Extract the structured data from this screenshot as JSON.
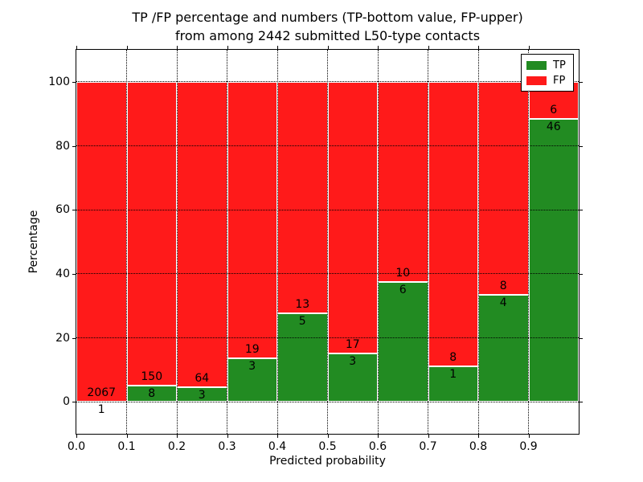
{
  "chart_data": {
    "type": "bar",
    "stacked": true,
    "units": "percent",
    "title_line1": "TP /FP percentage and numbers (TP-bottom value, FP-upper)",
    "title_line2": "from among 2442 submitted L50-type contacts",
    "xlabel": "Predicted probability",
    "ylabel": "Percentage",
    "xlim": [
      0.0,
      1.0
    ],
    "ylim": [
      -10,
      110
    ],
    "grid": "dotted",
    "legend_position": "upper right",
    "xticks": [
      {
        "value": 0.0,
        "label": "0.0"
      },
      {
        "value": 0.1,
        "label": "0.1"
      },
      {
        "value": 0.2,
        "label": "0.2"
      },
      {
        "value": 0.3,
        "label": "0.3"
      },
      {
        "value": 0.4,
        "label": "0.4"
      },
      {
        "value": 0.5,
        "label": "0.5"
      },
      {
        "value": 0.6,
        "label": "0.6"
      },
      {
        "value": 0.7,
        "label": "0.7"
      },
      {
        "value": 0.8,
        "label": "0.8"
      },
      {
        "value": 0.9,
        "label": "0.9"
      }
    ],
    "yticks": [
      {
        "value": 0,
        "label": "0"
      },
      {
        "value": 20,
        "label": "20"
      },
      {
        "value": 40,
        "label": "40"
      },
      {
        "value": 60,
        "label": "60"
      },
      {
        "value": 80,
        "label": "80"
      },
      {
        "value": 100,
        "label": "100"
      }
    ],
    "legend": {
      "entries": [
        {
          "name": "TP",
          "color": "#228b22"
        },
        {
          "name": "FP",
          "color": "#ff1a1a"
        }
      ]
    },
    "bins": [
      {
        "x0": 0.0,
        "x1": 0.1,
        "tp": 1,
        "fp": 2067
      },
      {
        "x0": 0.1,
        "x1": 0.2,
        "tp": 8,
        "fp": 150
      },
      {
        "x0": 0.2,
        "x1": 0.3,
        "tp": 3,
        "fp": 64
      },
      {
        "x0": 0.3,
        "x1": 0.4,
        "tp": 3,
        "fp": 19
      },
      {
        "x0": 0.4,
        "x1": 0.5,
        "tp": 5,
        "fp": 13
      },
      {
        "x0": 0.5,
        "x1": 0.6,
        "tp": 3,
        "fp": 17
      },
      {
        "x0": 0.6,
        "x1": 0.7,
        "tp": 6,
        "fp": 10
      },
      {
        "x0": 0.7,
        "x1": 0.8,
        "tp": 1,
        "fp": 8
      },
      {
        "x0": 0.8,
        "x1": 0.9,
        "tp": 4,
        "fp": 8
      },
      {
        "x0": 0.9,
        "x1": 1.0,
        "tp": 46,
        "fp": 6
      }
    ],
    "colors": {
      "tp": "#228b22",
      "fp": "#ff1a1a",
      "bar_edge": "#ffffff",
      "grid_line": "#000000",
      "text": "#000000",
      "background": "#ffffff"
    }
  }
}
